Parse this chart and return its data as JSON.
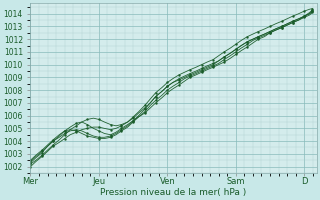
{
  "xlabel": "Pression niveau de la mer( hPa )",
  "background_color": "#c8e8e8",
  "plot_bg_color": "#d4ecec",
  "grid_color_major": "#88bbbb",
  "grid_color_minor": "#aacccc",
  "line_color": "#1a5c2a",
  "ylim": [
    1001.5,
    1014.8
  ],
  "xlim": [
    0,
    4.18
  ],
  "yticks": [
    1002,
    1003,
    1004,
    1005,
    1006,
    1007,
    1008,
    1009,
    1010,
    1011,
    1012,
    1013,
    1014
  ],
  "day_labels": [
    "Mer",
    "Jeu",
    "Ven",
    "Sam",
    "D"
  ],
  "day_positions": [
    0.0,
    1.0,
    2.0,
    3.0,
    4.0
  ],
  "series": [
    {
      "x": [
        0.0,
        0.08,
        0.17,
        0.25,
        0.33,
        0.42,
        0.5,
        0.58,
        0.67,
        0.75,
        0.83,
        0.92,
        1.0,
        1.08,
        1.17,
        1.25,
        1.33,
        1.42,
        1.5,
        1.58,
        1.67,
        1.75,
        1.83,
        1.92,
        2.0,
        2.08,
        2.17,
        2.25,
        2.33,
        2.42,
        2.5,
        2.58,
        2.67,
        2.75,
        2.83,
        2.92,
        3.0,
        3.08,
        3.17,
        3.25,
        3.33,
        3.42,
        3.5,
        3.58,
        3.67,
        3.75,
        3.83,
        3.92,
        4.0,
        4.08,
        4.12
      ],
      "y": [
        1002.3,
        1002.7,
        1003.1,
        1003.6,
        1004.0,
        1004.4,
        1004.8,
        1005.1,
        1005.4,
        1005.5,
        1005.3,
        1005.0,
        1004.8,
        1004.6,
        1004.5,
        1004.7,
        1005.0,
        1005.3,
        1005.6,
        1005.9,
        1006.2,
        1006.6,
        1007.0,
        1007.4,
        1007.8,
        1008.1,
        1008.4,
        1008.7,
        1009.0,
        1009.2,
        1009.4,
        1009.6,
        1009.8,
        1010.0,
        1010.2,
        1010.5,
        1010.8,
        1011.1,
        1011.4,
        1011.7,
        1012.0,
        1012.2,
        1012.5,
        1012.7,
        1012.9,
        1013.1,
        1013.3,
        1013.5,
        1013.8,
        1014.1,
        1014.3
      ]
    },
    {
      "x": [
        0.0,
        0.08,
        0.17,
        0.25,
        0.33,
        0.42,
        0.5,
        0.58,
        0.67,
        0.75,
        0.83,
        0.92,
        1.0,
        1.08,
        1.17,
        1.25,
        1.33,
        1.42,
        1.5,
        1.58,
        1.67,
        1.75,
        1.83,
        1.92,
        2.0,
        2.08,
        2.17,
        2.25,
        2.33,
        2.42,
        2.5,
        2.58,
        2.67,
        2.75,
        2.83,
        2.92,
        3.0,
        3.08,
        3.17,
        3.25,
        3.33,
        3.42,
        3.5,
        3.58,
        3.67,
        3.75,
        3.83,
        3.92,
        4.0,
        4.08,
        4.12
      ],
      "y": [
        1002.5,
        1002.9,
        1003.3,
        1003.7,
        1004.1,
        1004.5,
        1004.8,
        1004.9,
        1004.8,
        1004.6,
        1004.4,
        1004.3,
        1004.2,
        1004.2,
        1004.3,
        1004.5,
        1004.8,
        1005.1,
        1005.5,
        1005.9,
        1006.3,
        1006.8,
        1007.2,
        1007.6,
        1008.0,
        1008.3,
        1008.6,
        1008.9,
        1009.1,
        1009.3,
        1009.5,
        1009.7,
        1009.9,
        1010.1,
        1010.4,
        1010.7,
        1011.0,
        1011.3,
        1011.6,
        1011.9,
        1012.1,
        1012.3,
        1012.5,
        1012.7,
        1012.9,
        1013.1,
        1013.3,
        1013.5,
        1013.7,
        1013.9,
        1014.1
      ]
    },
    {
      "x": [
        0.0,
        0.08,
        0.17,
        0.25,
        0.33,
        0.42,
        0.5,
        0.58,
        0.67,
        0.75,
        0.83,
        0.92,
        1.0,
        1.08,
        1.17,
        1.25,
        1.33,
        1.42,
        1.5,
        1.58,
        1.67,
        1.75,
        1.83,
        1.92,
        2.0,
        2.08,
        2.17,
        2.25,
        2.33,
        2.42,
        2.5,
        2.58,
        2.67,
        2.75,
        2.83,
        2.92,
        3.0,
        3.08,
        3.17,
        3.25,
        3.33,
        3.42,
        3.5,
        3.58,
        3.67,
        3.75,
        3.83,
        3.92,
        4.0,
        4.08,
        4.12
      ],
      "y": [
        1002.2,
        1002.5,
        1002.9,
        1003.3,
        1003.7,
        1004.1,
        1004.5,
        1004.9,
        1005.2,
        1005.5,
        1005.7,
        1005.8,
        1005.7,
        1005.5,
        1005.3,
        1005.2,
        1005.3,
        1005.5,
        1005.8,
        1006.2,
        1006.6,
        1007.0,
        1007.5,
        1007.9,
        1008.3,
        1008.6,
        1008.9,
        1009.1,
        1009.3,
        1009.5,
        1009.7,
        1009.9,
        1010.1,
        1010.3,
        1010.6,
        1010.9,
        1011.2,
        1011.5,
        1011.8,
        1012.0,
        1012.2,
        1012.4,
        1012.6,
        1012.8,
        1013.0,
        1013.2,
        1013.4,
        1013.6,
        1013.8,
        1014.0,
        1014.2
      ]
    },
    {
      "x": [
        0.0,
        0.08,
        0.17,
        0.25,
        0.33,
        0.42,
        0.5,
        0.58,
        0.67,
        0.75,
        0.83,
        0.92,
        1.0,
        1.08,
        1.17,
        1.25,
        1.33,
        1.42,
        1.5,
        1.58,
        1.67,
        1.75,
        1.83,
        1.92,
        2.0,
        2.08,
        2.17,
        2.25,
        2.33,
        2.42,
        2.5,
        2.58,
        2.67,
        2.75,
        2.83,
        2.92,
        3.0,
        3.08,
        3.17,
        3.25,
        3.33,
        3.42,
        3.5,
        3.58,
        3.67,
        3.75,
        3.83,
        3.92,
        4.0,
        4.08,
        4.12
      ],
      "y": [
        1002.0,
        1002.4,
        1002.8,
        1003.2,
        1003.6,
        1003.9,
        1004.2,
        1004.5,
        1004.7,
        1004.9,
        1005.0,
        1005.1,
        1005.1,
        1005.0,
        1004.9,
        1005.0,
        1005.2,
        1005.5,
        1005.9,
        1006.3,
        1006.8,
        1007.3,
        1007.8,
        1008.2,
        1008.6,
        1008.9,
        1009.2,
        1009.4,
        1009.6,
        1009.8,
        1010.0,
        1010.2,
        1010.4,
        1010.7,
        1011.0,
        1011.3,
        1011.6,
        1011.9,
        1012.2,
        1012.4,
        1012.6,
        1012.8,
        1013.0,
        1013.2,
        1013.4,
        1013.6,
        1013.8,
        1014.0,
        1014.2,
        1014.35,
        1014.4
      ]
    },
    {
      "x": [
        0.0,
        0.08,
        0.17,
        0.25,
        0.33,
        0.42,
        0.5,
        0.58,
        0.67,
        0.75,
        0.83,
        0.92,
        1.0,
        1.08,
        1.17,
        1.25,
        1.33,
        1.42,
        1.5,
        1.58,
        1.67,
        1.75,
        1.83,
        1.92,
        2.0,
        2.08,
        2.17,
        2.25,
        2.33,
        2.42,
        2.5,
        2.58,
        2.67,
        2.75,
        2.83,
        2.92,
        3.0,
        3.08,
        3.17,
        3.25,
        3.33,
        3.42,
        3.5,
        3.58,
        3.67,
        3.75,
        3.83,
        3.92,
        4.0,
        4.08,
        4.12
      ],
      "y": [
        1002.4,
        1002.8,
        1003.2,
        1003.6,
        1004.0,
        1004.3,
        1004.6,
        1004.8,
        1004.9,
        1004.8,
        1004.6,
        1004.4,
        1004.3,
        1004.3,
        1004.4,
        1004.6,
        1004.9,
        1005.2,
        1005.6,
        1006.0,
        1006.5,
        1007.0,
        1007.5,
        1007.9,
        1008.3,
        1008.6,
        1008.8,
        1009.0,
        1009.2,
        1009.4,
        1009.6,
        1009.8,
        1010.0,
        1010.3,
        1010.6,
        1010.9,
        1011.2,
        1011.5,
        1011.8,
        1012.0,
        1012.2,
        1012.4,
        1012.6,
        1012.8,
        1013.0,
        1013.2,
        1013.4,
        1013.6,
        1013.8,
        1014.0,
        1014.2
      ]
    }
  ]
}
